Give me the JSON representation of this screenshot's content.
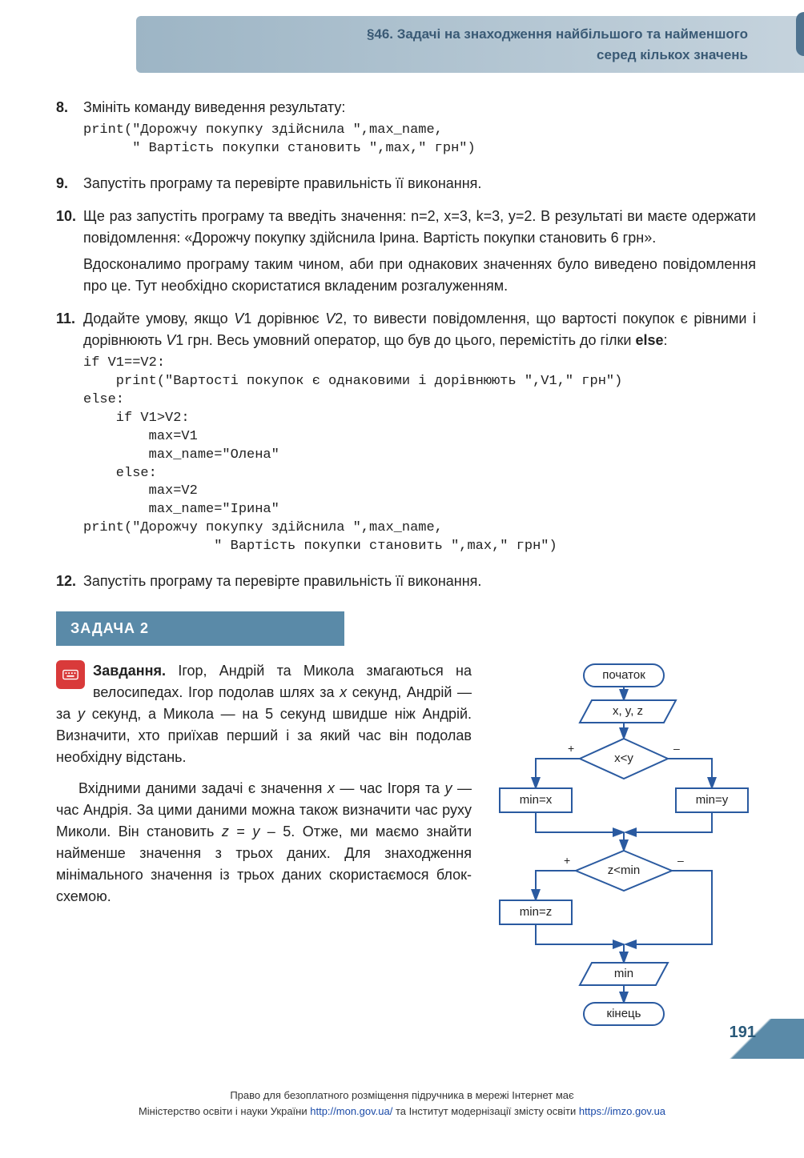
{
  "header": {
    "section_title_line1": "§46. Задачі на знаходження найбільшого та найменшого",
    "section_title_line2": "серед кількох значень"
  },
  "items": [
    {
      "num": "8.",
      "text": "Змініть команду виведення результату:",
      "code": "print(\"Дорожчу покупку здійснила \",max_name,\n      \" Вартість покупки становить \",max,\" грн\")"
    },
    {
      "num": "9.",
      "text": "Запустіть програму та перевірте правильність її виконання."
    },
    {
      "num": "10.",
      "text": "Ще раз запустіть програму та введіть значення: n=2, x=3, k=3, y=2. В результаті ви маєте одержати повідомлення: «Дорожчу покупку здійснила Ірина. Вартість покупки становить 6 грн».",
      "text2": "Вдосконалимо програму таким чином, аби при однакових значеннях було виведено повідомлення про це. Тут необхідно скористатися вкладеним розгалуженням."
    },
    {
      "num": "11.",
      "text_html": "Додайте умову, якщо <span class='italic-var'>V</span>1 дорівнює <span class='italic-var'>V</span>2, то вивести повідомлення, що вартості покупок є рівними і дорівнюють <span class='italic-var'>V</span>1 грн. Весь умовний оператор, що був до цього, перемістіть до гілки <b>else</b>:",
      "code": "if V1==V2:\n    print(\"Вартості покупок є однаковими і дорівнюють \",V1,\" грн\")\nelse:\n    if V1>V2:\n        max=V1\n        max_name=\"Олена\"\n    else:\n        max=V2\n        max_name=\"Ірина\"\nprint(\"Дорожчу покупку здійснила \",max_name,\n                \" Вартість покупки становить \",max,\" грн\")"
    },
    {
      "num": "12.",
      "text": "Запустіть програму та перевірте правильність її виконання."
    }
  ],
  "task2": {
    "header": "ЗАДАЧА 2",
    "label": "Завдання.",
    "para1_html": "Ігор, Андрій та Микола змагаються на велосипедах. Ігор подолав шлях за <span class='italic-var'>x</span> секунд, Андрій — за <span class='italic-var'>y</span> секунд, а Микола — на 5 секунд швидше ніж Андрій. Визначити, хто приїхав перший і за який час він подолав необхідну відстань.",
    "para2_html": "Вхідними даними задачі є значення <span class='italic-var'>x</span> — час Ігоря та <span class='italic-var'>y</span> — час Андрія. За цими даними можна також визначити час руху Миколи. Він становить <span class='italic-var'>z</span> = <span class='italic-var'>y</span> – 5. Отже, ми маємо знайти найменше значення з трьох даних. Для знаходження мінімального значення із трьох даних скористаємося блок-схемою."
  },
  "flowchart": {
    "nodes": {
      "start": "початок",
      "input": "x, y, z",
      "cond1": "x<y",
      "minx": "min=x",
      "miny": "min=y",
      "cond2": "z<min",
      "minz": "min=z",
      "output": "min",
      "end": "кінець"
    },
    "labels": {
      "plus": "+",
      "minus": "–"
    },
    "colors": {
      "stroke": "#2a5aa0",
      "fill": "#ffffff",
      "text": "#222222"
    }
  },
  "page_number": "191",
  "footer": {
    "line1": "Право для безоплатного розміщення підручника в мережі Інтернет має",
    "line2_pre": "Міністерство освіти і науки України ",
    "url1": "http://mon.gov.ua/",
    "line2_mid": " та Інститут модернізації змісту освіти ",
    "url2": "https://imzo.gov.ua"
  }
}
